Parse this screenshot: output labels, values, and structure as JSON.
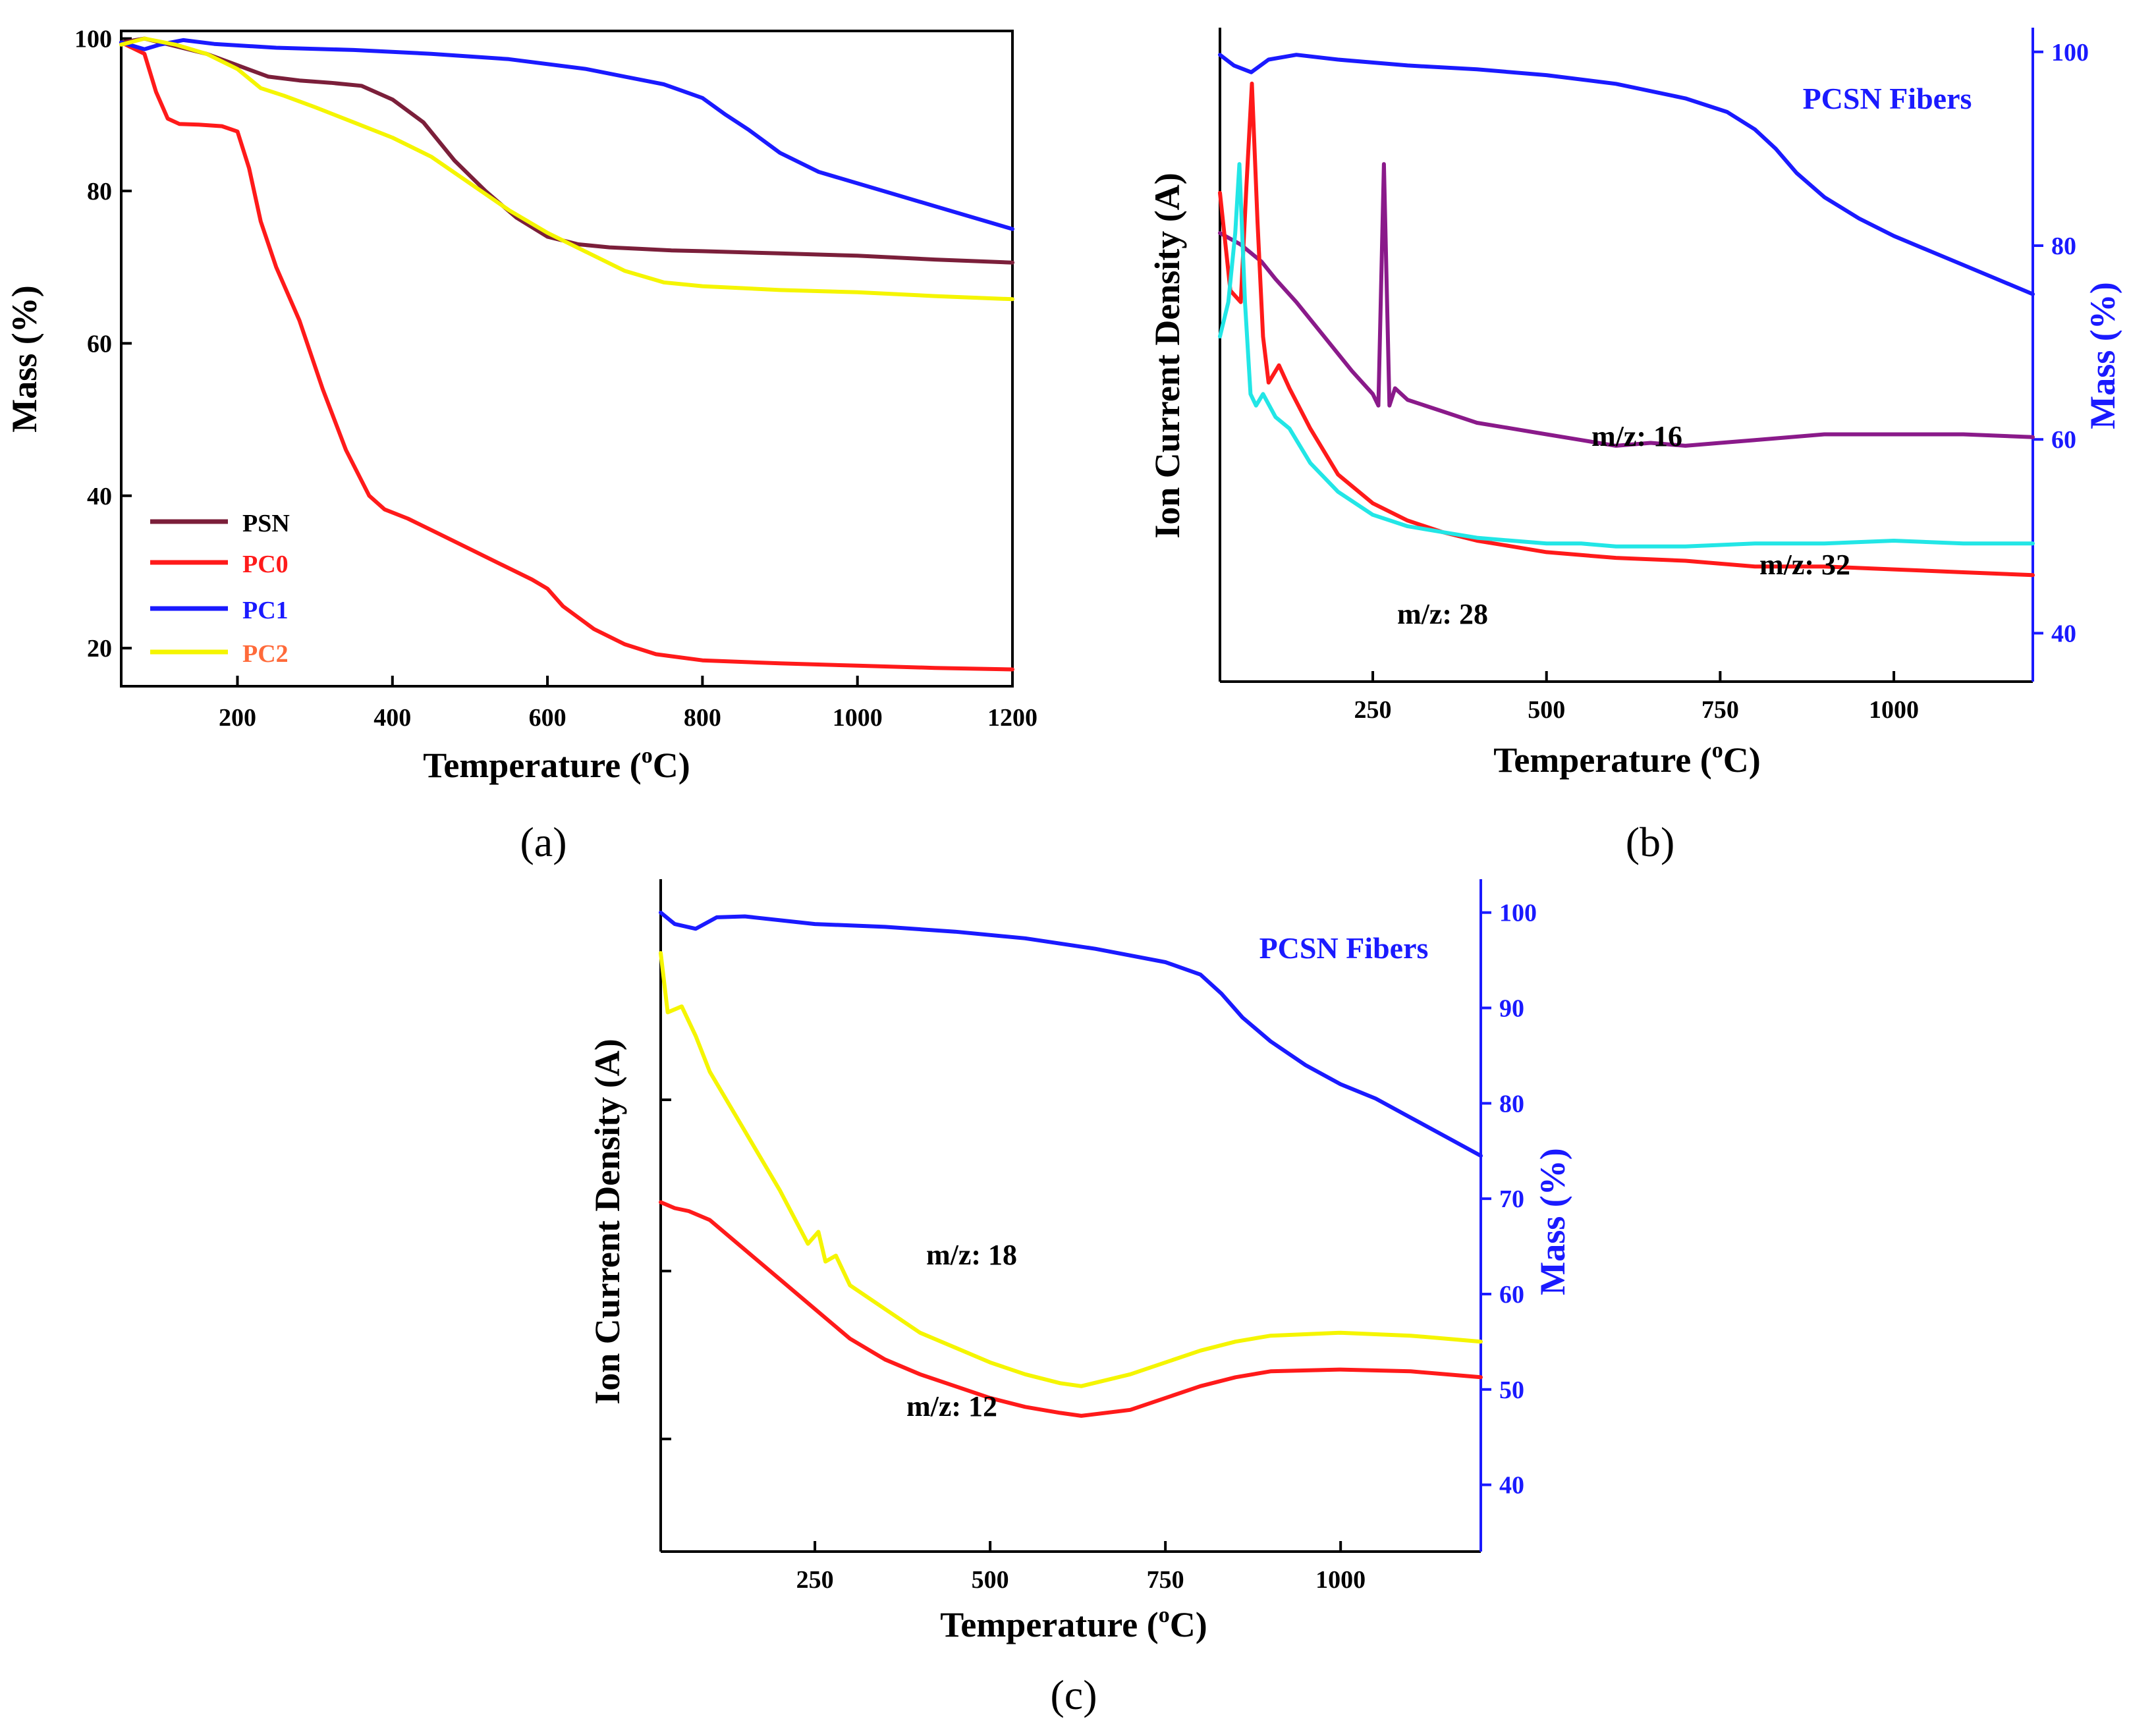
{
  "colors": {
    "psn": "#7b1f3a",
    "pc0": "#ff1a1a",
    "pc1": "#1a1aff",
    "pc2": "#f5f500",
    "cyan": "#22e6e6",
    "purple": "#8a1a8a",
    "axis_blue": "#1a1aff"
  },
  "chart_data": [
    {
      "id": "a",
      "panel_label": "(a)",
      "type": "line",
      "xlabel": "Temperature (",
      "xlabel_sup": "o",
      "xlabel_unit": "C)",
      "ylabel": "Mass (%)",
      "xlim": [
        50,
        1200
      ],
      "ylim": [
        15,
        101
      ],
      "xticks": [
        200,
        400,
        600,
        800,
        1000,
        1200
      ],
      "yticks": [
        20,
        40,
        60,
        80,
        100
      ],
      "legend_position": "lower-left",
      "series": [
        {
          "name": "PSN",
          "color_key": "psn",
          "x": [
            50,
            80,
            120,
            160,
            200,
            240,
            280,
            320,
            360,
            400,
            440,
            480,
            520,
            560,
            600,
            640,
            680,
            720,
            760,
            800,
            900,
            1000,
            1100,
            1200
          ],
          "y": [
            99.5,
            100,
            99,
            98,
            96.5,
            95,
            94.5,
            94.2,
            93.8,
            92,
            89,
            84,
            80,
            76.5,
            74,
            73,
            72.6,
            72.4,
            72.2,
            72.1,
            71.8,
            71.5,
            71,
            70.6
          ]
        },
        {
          "name": "PC0",
          "color_key": "pc0",
          "x": [
            50,
            80,
            95,
            110,
            125,
            150,
            180,
            200,
            215,
            230,
            250,
            280,
            310,
            340,
            370,
            390,
            420,
            460,
            500,
            540,
            580,
            600,
            620,
            660,
            700,
            740,
            800,
            900,
            1000,
            1100,
            1200
          ],
          "y": [
            99.5,
            98,
            93,
            89.5,
            88.8,
            88.7,
            88.5,
            87.8,
            83,
            76,
            70,
            63,
            54,
            46,
            40,
            38.2,
            37,
            35,
            33,
            31,
            29,
            27.8,
            25.5,
            22.5,
            20.5,
            19.2,
            18.4,
            18,
            17.7,
            17.4,
            17.2
          ]
        },
        {
          "name": "PC1",
          "color_key": "pc1",
          "x": [
            50,
            80,
            100,
            130,
            170,
            250,
            350,
            450,
            550,
            650,
            700,
            750,
            800,
            830,
            860,
            900,
            950,
            1000,
            1050,
            1100,
            1150,
            1200
          ],
          "y": [
            99.5,
            98.6,
            99.2,
            99.8,
            99.3,
            98.8,
            98.5,
            98,
            97.3,
            96,
            95,
            94,
            92.2,
            90,
            88,
            85,
            82.5,
            81,
            79.5,
            78,
            76.5,
            75
          ]
        },
        {
          "name": "PC2",
          "color_key": "pc2",
          "x": [
            50,
            80,
            120,
            160,
            200,
            230,
            260,
            300,
            350,
            400,
            450,
            500,
            550,
            600,
            650,
            700,
            750,
            800,
            900,
            1000,
            1100,
            1200
          ],
          "y": [
            99.2,
            100,
            99.2,
            98,
            96,
            93.5,
            92.5,
            91,
            89,
            87,
            84.5,
            81,
            77.5,
            74.5,
            72,
            69.5,
            68,
            67.5,
            67,
            66.7,
            66.2,
            65.8
          ]
        }
      ]
    },
    {
      "id": "b",
      "panel_label": "(b)",
      "type": "line",
      "title_annotation": "PCSN Fibers",
      "xlabel": "Temperature (",
      "xlabel_sup": "o",
      "xlabel_unit": "C)",
      "ylabel_left": "Ion Current Density (A)",
      "ylabel_right": "Mass (%)",
      "xlim": [
        30,
        1200
      ],
      "right_ylim": [
        35,
        102.5
      ],
      "left_ylim": [
        0,
        100
      ],
      "xticks": [
        250,
        500,
        750,
        1000
      ],
      "right_yticks": [
        40,
        60,
        80,
        100
      ],
      "annotations": [
        "m/z: 16",
        "m/z: 32",
        "m/z: 28"
      ],
      "series": [
        {
          "name": "Mass",
          "axis": "right",
          "color_key": "pc1",
          "x": [
            30,
            50,
            75,
            100,
            140,
            200,
            300,
            400,
            500,
            600,
            700,
            760,
            800,
            830,
            860,
            900,
            950,
            1000,
            1050,
            1100,
            1150,
            1200
          ],
          "y": [
            99.7,
            98.6,
            97.9,
            99.2,
            99.7,
            99.2,
            98.6,
            98.2,
            97.6,
            96.7,
            95.2,
            93.8,
            92,
            90,
            87.5,
            85,
            82.8,
            81,
            79.5,
            78,
            76.5,
            75
          ]
        },
        {
          "name": "m/z: 16",
          "axis": "left",
          "color_key": "purple",
          "x": [
            30,
            60,
            90,
            110,
            140,
            180,
            220,
            250,
            258,
            266,
            274,
            282,
            300,
            350,
            400,
            450,
            500,
            550,
            600,
            650,
            700,
            750,
            800,
            900,
            1000,
            1100,
            1200
          ],
          "y": [
            70,
            68,
            65,
            62,
            58,
            52,
            46,
            42,
            40,
            82,
            40,
            43,
            41,
            39,
            37,
            36,
            35,
            34,
            33,
            33.5,
            33,
            33.5,
            34,
            35,
            35,
            35,
            34.5
          ]
        },
        {
          "name": "m/z: 28",
          "axis": "left",
          "color_key": "pc0",
          "x": [
            30,
            45,
            60,
            68,
            76,
            84,
            92,
            100,
            115,
            130,
            160,
            200,
            250,
            300,
            350,
            400,
            450,
            500,
            550,
            600,
            700,
            800,
            900,
            1000,
            1100,
            1200
          ],
          "y": [
            77,
            60,
            58,
            78,
            96,
            72,
            52,
            44,
            47,
            43,
            36,
            28,
            23,
            20,
            18,
            16.5,
            15.5,
            14.5,
            14,
            13.5,
            13,
            12,
            12,
            11.5,
            11,
            10.5
          ]
        },
        {
          "name": "m/z: 32",
          "axis": "left",
          "color_key": "cyan",
          "x": [
            30,
            42,
            52,
            58,
            66,
            74,
            82,
            92,
            110,
            130,
            160,
            200,
            250,
            300,
            350,
            400,
            450,
            500,
            550,
            600,
            700,
            800,
            900,
            1000,
            1100,
            1200
          ],
          "y": [
            52,
            58,
            70,
            82,
            58,
            42,
            40,
            42,
            38,
            36,
            30,
            25,
            21,
            19,
            18,
            17,
            16.5,
            16,
            16,
            15.5,
            15.5,
            16,
            16,
            16.5,
            16,
            16
          ]
        }
      ]
    },
    {
      "id": "c",
      "panel_label": "(c)",
      "type": "line",
      "title_annotation": "PCSN Fibers",
      "xlabel": "Temperature (",
      "xlabel_sup": "o",
      "xlabel_unit": "C)",
      "ylabel_left": "Ion Current Density (A)",
      "ylabel_right": "Mass (%)",
      "xlim": [
        30,
        1200
      ],
      "right_ylim": [
        33,
        103.5
      ],
      "left_ylim": [
        0,
        100
      ],
      "xticks": [
        250,
        500,
        750,
        1000
      ],
      "right_yticks": [
        40,
        50,
        60,
        70,
        80,
        90,
        100
      ],
      "annotations": [
        "m/z: 18",
        "m/z: 12"
      ],
      "series": [
        {
          "name": "Mass",
          "axis": "right",
          "color_key": "pc1",
          "x": [
            30,
            50,
            80,
            110,
            150,
            250,
            350,
            450,
            550,
            650,
            750,
            800,
            830,
            860,
            900,
            950,
            1000,
            1050,
            1100,
            1150,
            1200
          ],
          "y": [
            100,
            98.8,
            98.3,
            99.5,
            99.6,
            98.8,
            98.5,
            98,
            97.3,
            96.2,
            94.8,
            93.5,
            91.5,
            89,
            86.5,
            84,
            82,
            80.5,
            78.5,
            76.5,
            74.5
          ]
        },
        {
          "name": "m/z: 18",
          "axis": "left",
          "color_key": "pc2",
          "x": [
            30,
            40,
            60,
            80,
            100,
            150,
            200,
            240,
            255,
            265,
            280,
            300,
            350,
            400,
            450,
            500,
            550,
            600,
            630,
            700,
            750,
            800,
            850,
            900,
            1000,
            1100,
            1200
          ],
          "y": [
            92,
            82,
            83,
            78,
            72,
            62,
            52,
            43,
            45,
            40,
            41,
            36,
            32,
            28,
            25.5,
            23,
            21,
            19.5,
            19,
            21,
            23,
            25,
            26.5,
            27.5,
            28,
            27.5,
            26.5
          ]
        },
        {
          "name": "m/z: 12",
          "axis": "left",
          "color_key": "pc0",
          "x": [
            30,
            50,
            70,
            100,
            150,
            200,
            250,
            300,
            350,
            400,
            450,
            500,
            550,
            600,
            630,
            700,
            750,
            800,
            850,
            900,
            1000,
            1100,
            1200
          ],
          "y": [
            50,
            49,
            48.5,
            47,
            42,
            37,
            32,
            27,
            23.5,
            21,
            19,
            17,
            15.5,
            14.5,
            14,
            15,
            17,
            19,
            20.5,
            21.5,
            21.8,
            21.5,
            20.5
          ]
        }
      ]
    }
  ]
}
